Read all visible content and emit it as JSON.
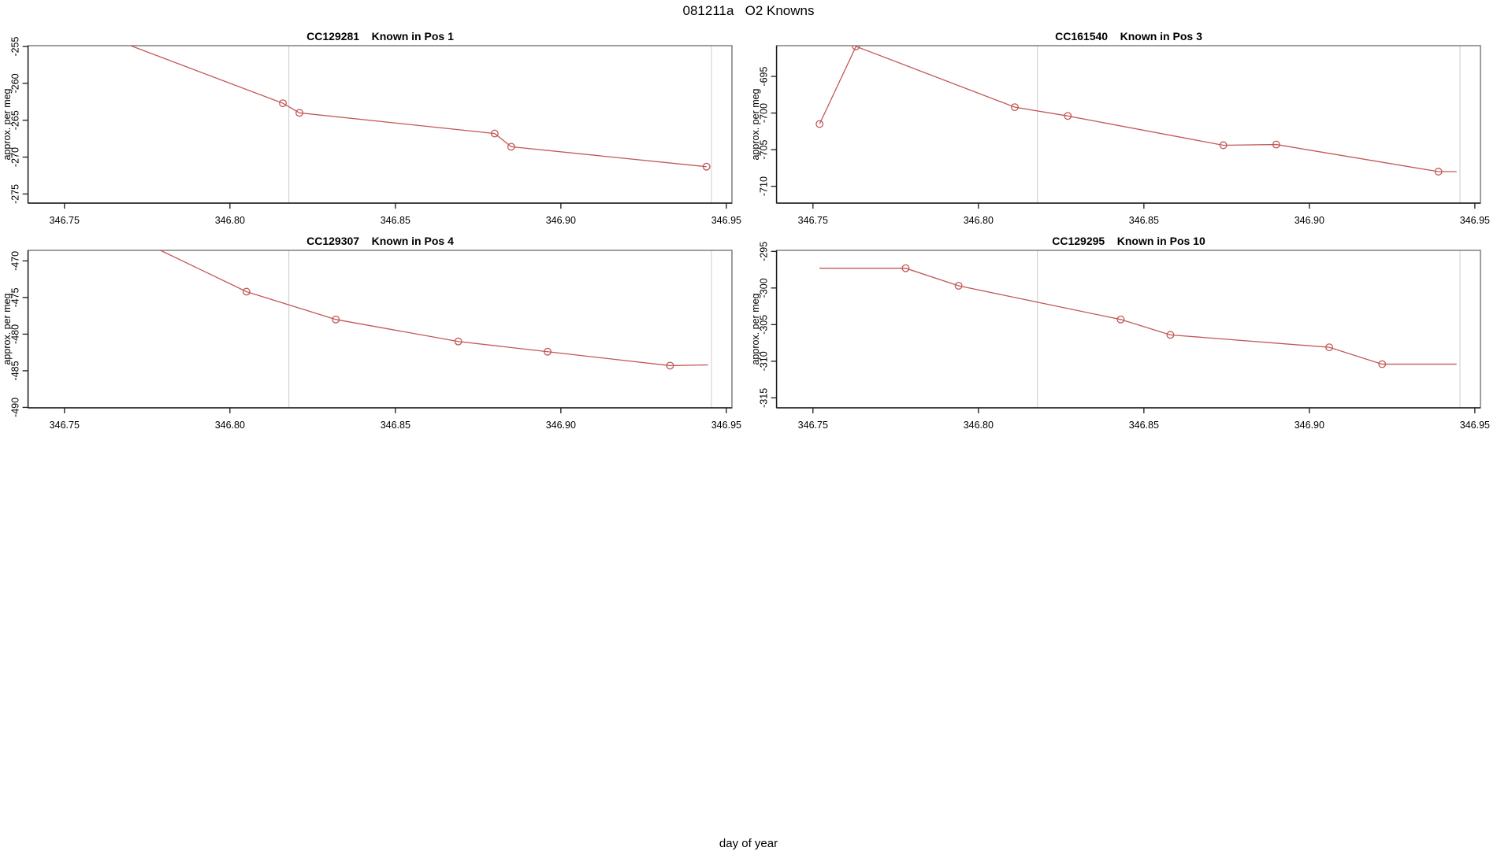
{
  "figure": {
    "title": "081211a   O2 Knowns",
    "x_outer_label": "day of year"
  },
  "colors": {
    "series": "#C25757",
    "vline": "#D4D4D4",
    "box": "#7E7E7E",
    "axis": "#1A1A1A",
    "text": "#000000"
  },
  "chart_data": {
    "type": "line",
    "xlabel": "day of year",
    "ylabel": "approx. per meg",
    "xlim": [
      346.739,
      346.9517
    ],
    "x_ticks": [
      {
        "v": 346.75,
        "label": "346.75"
      },
      {
        "v": 346.8,
        "label": "346.80"
      },
      {
        "v": 346.85,
        "label": "346.85"
      },
      {
        "v": 346.9,
        "label": "346.90"
      },
      {
        "v": 346.95,
        "label": "346.95"
      }
    ],
    "vlines": [
      346.8178,
      346.9455
    ],
    "legend": "none",
    "grid": "off",
    "panels": [
      {
        "id": "CC129281",
        "title": "CC129281    Known in Pos 1",
        "position_label": "Known in Pos 1",
        "row": 0,
        "col": 0,
        "ylim": [
          -276.24,
          -254.89
        ],
        "y_ticks": [
          {
            "v": -275,
            "label": "-275"
          },
          {
            "v": -270,
            "label": "-270"
          },
          {
            "v": -265,
            "label": "-265"
          },
          {
            "v": -260,
            "label": "-260"
          },
          {
            "v": -255,
            "label": "-255"
          }
        ],
        "points": [
          {
            "x": 346.77,
            "y": -254.89,
            "marker": false
          },
          {
            "x": 346.816,
            "y": -262.7,
            "marker": true
          },
          {
            "x": 346.821,
            "y": -264.0,
            "marker": true
          },
          {
            "x": 346.88,
            "y": -266.8,
            "marker": true
          },
          {
            "x": 346.885,
            "y": -268.6,
            "marker": true
          },
          {
            "x": 346.944,
            "y": -271.3,
            "marker": true
          }
        ]
      },
      {
        "id": "CC161540",
        "title": "CC161540    Known in Pos 3",
        "position_label": "Known in Pos 3",
        "row": 0,
        "col": 1,
        "ylim": [
          -712.3,
          -690.8
        ],
        "y_ticks": [
          {
            "v": -710,
            "label": "-710"
          },
          {
            "v": -705,
            "label": "-705"
          },
          {
            "v": -700,
            "label": "-700"
          },
          {
            "v": -695,
            "label": "-695"
          }
        ],
        "points": [
          {
            "x": 346.752,
            "y": -701.5,
            "marker": true
          },
          {
            "x": 346.763,
            "y": -690.9,
            "marker": true
          },
          {
            "x": 346.811,
            "y": -699.2,
            "marker": true
          },
          {
            "x": 346.827,
            "y": -700.4,
            "marker": true
          },
          {
            "x": 346.874,
            "y": -704.4,
            "marker": true
          },
          {
            "x": 346.89,
            "y": -704.3,
            "marker": true
          },
          {
            "x": 346.939,
            "y": -708.0,
            "marker": true
          },
          {
            "x": 346.9445,
            "y": -708.0,
            "marker": false
          }
        ]
      },
      {
        "id": "CC129307",
        "title": "CC129307    Known in Pos 4",
        "position_label": "Known in Pos 4",
        "row": 1,
        "col": 0,
        "ylim": [
          -490.06,
          -468.56
        ],
        "y_ticks": [
          {
            "v": -490,
            "label": "-490"
          },
          {
            "v": -485,
            "label": "-485"
          },
          {
            "v": -480,
            "label": "-480"
          },
          {
            "v": -475,
            "label": "-475"
          },
          {
            "v": -470,
            "label": "-470"
          }
        ],
        "points": [
          {
            "x": 346.779,
            "y": -468.56,
            "marker": false
          },
          {
            "x": 346.805,
            "y": -474.2,
            "marker": true
          },
          {
            "x": 346.832,
            "y": -478.0,
            "marker": true
          },
          {
            "x": 346.869,
            "y": -481.0,
            "marker": true
          },
          {
            "x": 346.896,
            "y": -482.4,
            "marker": true
          },
          {
            "x": 346.933,
            "y": -484.3,
            "marker": true
          },
          {
            "x": 346.9445,
            "y": -484.2,
            "marker": false
          }
        ]
      },
      {
        "id": "CC129295",
        "title": "CC129295    Known in Pos 10",
        "position_label": "Known in Pos 10",
        "row": 1,
        "col": 1,
        "ylim": [
          -316.36,
          -294.86
        ],
        "y_ticks": [
          {
            "v": -315,
            "label": "-315"
          },
          {
            "v": -310,
            "label": "-310"
          },
          {
            "v": -305,
            "label": "-305"
          },
          {
            "v": -300,
            "label": "-300"
          },
          {
            "v": -295,
            "label": "-295"
          }
        ],
        "points": [
          {
            "x": 346.752,
            "y": -297.3,
            "marker": false
          },
          {
            "x": 346.778,
            "y": -297.3,
            "marker": true
          },
          {
            "x": 346.794,
            "y": -299.7,
            "marker": true
          },
          {
            "x": 346.843,
            "y": -304.3,
            "marker": true
          },
          {
            "x": 346.858,
            "y": -306.4,
            "marker": true
          },
          {
            "x": 346.906,
            "y": -308.1,
            "marker": true
          },
          {
            "x": 346.922,
            "y": -310.4,
            "marker": true
          },
          {
            "x": 346.9445,
            "y": -310.4,
            "marker": false
          }
        ]
      }
    ]
  }
}
